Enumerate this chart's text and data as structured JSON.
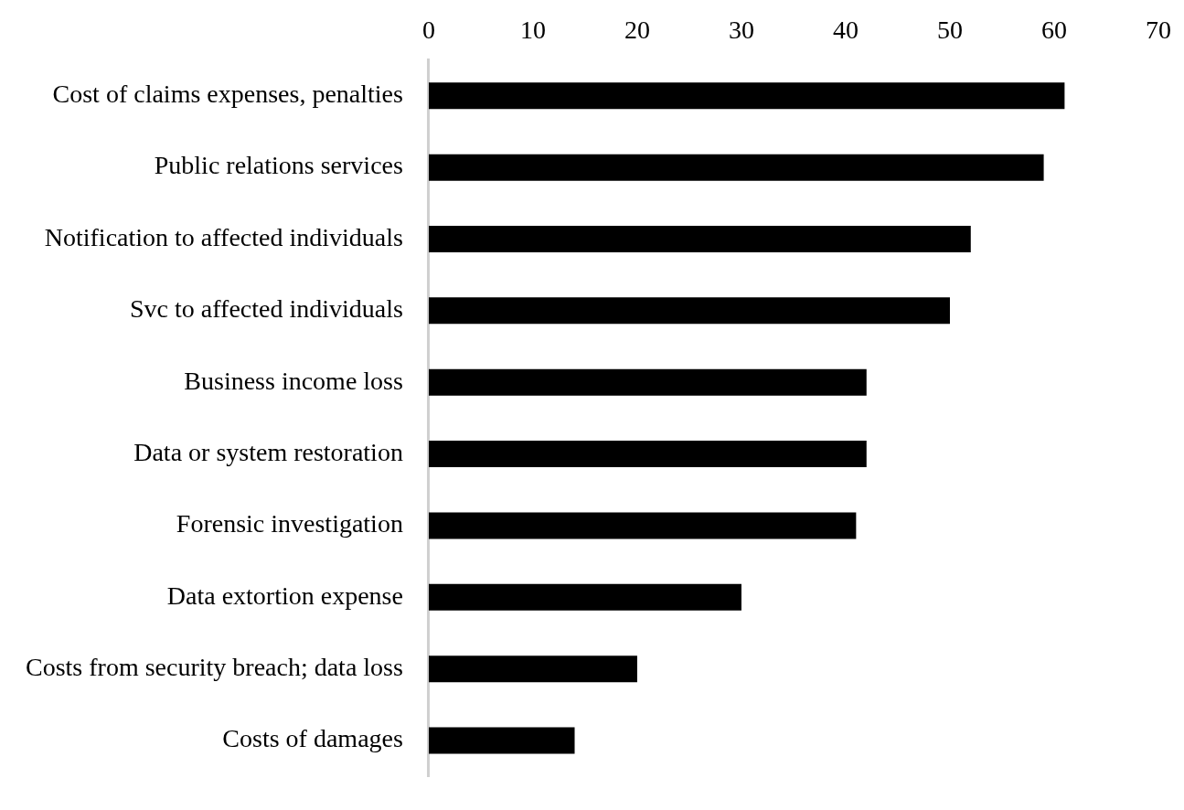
{
  "chart_data": {
    "type": "bar",
    "orientation": "horizontal",
    "categories": [
      "Cost of claims expenses, penalties",
      "Public relations services",
      "Notification to affected individuals",
      "Svc to affected individuals",
      "Business income loss",
      "Data or system restoration",
      "Forensic investigation",
      "Data extortion expense",
      "Costs from security breach; data loss",
      "Costs of damages"
    ],
    "values": [
      61,
      59,
      52,
      50,
      42,
      42,
      41,
      30,
      20,
      14
    ],
    "color": "#000000",
    "xlim": [
      0,
      70
    ],
    "xticks": [
      0,
      10,
      20,
      30,
      40,
      50,
      60,
      70
    ],
    "grid": false,
    "legend": false
  }
}
